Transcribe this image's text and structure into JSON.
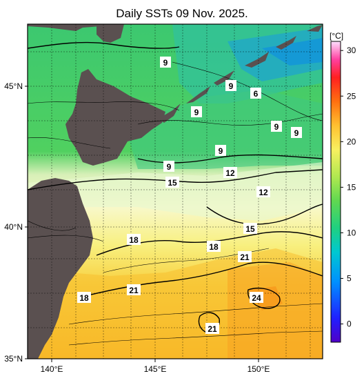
{
  "title": "Daily SSTs 09 Nov. 2025.",
  "map": {
    "lat_labels": [
      "45°N",
      "40°N",
      "35°N"
    ],
    "lon_labels": [
      "140°E",
      "145°E",
      "150°E"
    ],
    "lon_range": [
      139,
      153
    ],
    "lat_range": [
      35,
      47
    ]
  },
  "isotherm_labels": [
    "9",
    "9",
    "6",
    "9",
    "9",
    "9",
    "9",
    "9",
    "12",
    "12",
    "15",
    "15",
    "18",
    "18",
    "21",
    "21",
    "18",
    "24",
    "21"
  ],
  "colorbar": {
    "unit": "[°C]",
    "ticks": [
      "30",
      "25",
      "20",
      "15",
      "10",
      "5",
      "0"
    ],
    "tick_values": [
      30,
      25,
      20,
      15,
      10,
      5,
      0
    ],
    "range": [
      -2,
      31
    ],
    "colors": [
      "#5000c8",
      "#0030ff",
      "#0090ff",
      "#00c8e0",
      "#00d8a0",
      "#30d060",
      "#80e040",
      "#d8f060",
      "#f8f870",
      "#ffe040",
      "#ffb020",
      "#ff7010",
      "#ff3010",
      "#e01020",
      "#ff40a0",
      "#ff90e0",
      "#ffe0ff"
    ]
  }
}
